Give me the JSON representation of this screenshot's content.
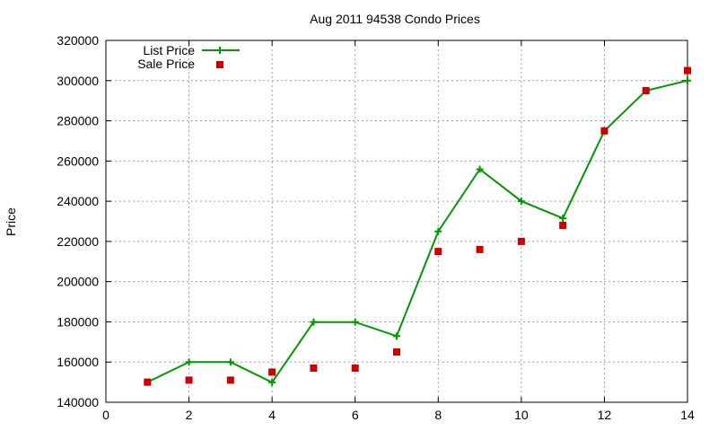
{
  "chart_data": {
    "type": "line",
    "title": "Aug 2011 94538 Condo Prices",
    "ylabel": "Price",
    "xlabel": "",
    "xlim": [
      0,
      14
    ],
    "ylim": [
      140000,
      320000
    ],
    "xticks": [
      0,
      2,
      4,
      6,
      8,
      10,
      12,
      14
    ],
    "yticks": [
      140000,
      160000,
      180000,
      200000,
      220000,
      240000,
      260000,
      280000,
      300000,
      320000
    ],
    "grid": true,
    "legend_position": "top-left",
    "series": [
      {
        "name": "List Price",
        "style": "line-with-plus-markers",
        "color": "#009900",
        "x": [
          1,
          2,
          3,
          4,
          5,
          6,
          7,
          8,
          9,
          10,
          11,
          12,
          13,
          14
        ],
        "y": [
          150000,
          160000,
          160000,
          149900,
          179900,
          179900,
          172900,
          225000,
          255900,
          240000,
          231500,
          275000,
          295000,
          300000
        ]
      },
      {
        "name": "Sale Price",
        "style": "square-markers",
        "color": "#cc0000",
        "x": [
          1,
          2,
          3,
          4,
          5,
          6,
          7,
          8,
          9,
          10,
          11,
          12,
          13,
          14
        ],
        "y": [
          150000,
          151000,
          151000,
          155000,
          157000,
          157000,
          165000,
          215000,
          216000,
          220000,
          228000,
          275000,
          295000,
          305000
        ]
      }
    ]
  }
}
